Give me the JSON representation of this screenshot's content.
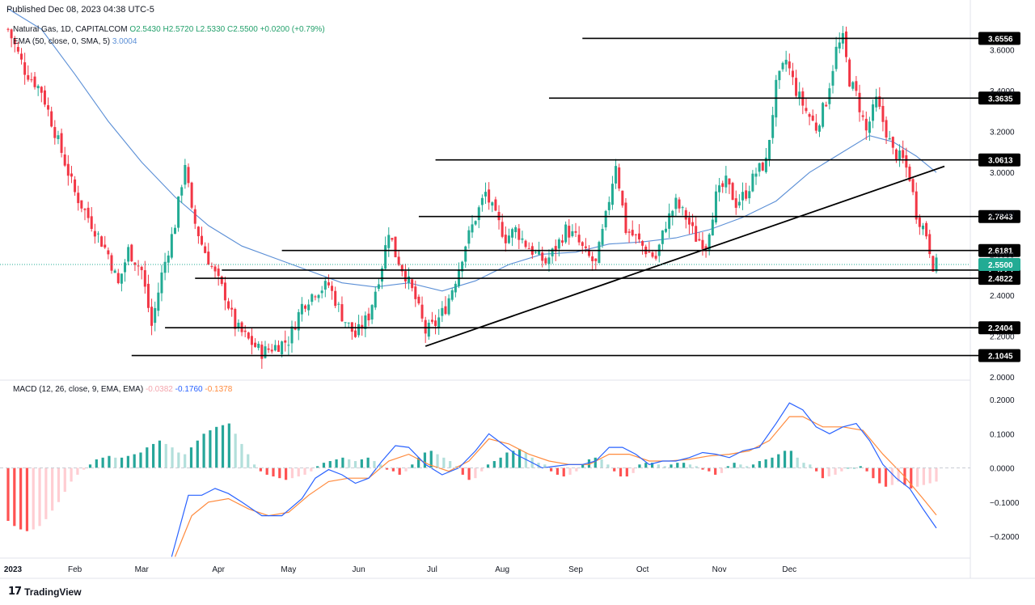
{
  "published": "Published  Dec 08, 2023 04:38 UTC-5",
  "header": {
    "symbol": "Natural Gas, 1D, CAPITALCOM",
    "o": "O2.5430",
    "h": "H2.5720",
    "l": "L2.5330",
    "c": "C2.5500",
    "change": "+0.0200 (+0.79%)",
    "ema_label": "EMA (50, close, 0, SMA, 5)",
    "ema_value": "3.0004"
  },
  "macd_header": {
    "label": "MACD (12, 26, close, 9, EMA, EMA)",
    "hist": "-0.0382",
    "macd": "-0.1760",
    "signal": "-0.1378"
  },
  "brand": "TradingView",
  "colors": {
    "up": "#22ab94",
    "down": "#f23645",
    "ema": "#5b8fd6",
    "macd": "#2962ff",
    "signal": "#ff8a3d",
    "hist_pos_strong": "#26a69a",
    "hist_pos_weak": "#b2dfdb",
    "hist_neg_strong": "#ff5252",
    "hist_neg_weak": "#ffcdd2"
  },
  "chart_data": [
    {
      "type": "candlestick",
      "ylim": [
        2.0,
        3.7
      ],
      "y_ticks": [
        "3.6000",
        "3.4000",
        "3.2000",
        "3.0000",
        "2.8000",
        "2.6000",
        "2.4000",
        "2.2000",
        "2.0000"
      ],
      "x_ticks": [
        "2023",
        "Feb",
        "Mar",
        "Apr",
        "May",
        "Jun",
        "Jul",
        "Aug",
        "Sep",
        "Oct",
        "Nov",
        "Dec"
      ],
      "last_price": 2.55,
      "last_price_label": "2.5500",
      "close_path": [
        [
          0,
          3.7
        ],
        [
          5,
          3.5
        ],
        [
          10,
          3.4
        ],
        [
          15,
          3.15
        ],
        [
          20,
          2.9
        ],
        [
          25,
          2.75
        ],
        [
          30,
          2.6
        ],
        [
          33,
          2.45
        ],
        [
          36,
          2.62
        ],
        [
          40,
          2.52
        ],
        [
          43,
          2.25
        ],
        [
          46,
          2.5
        ],
        [
          50,
          2.75
        ],
        [
          53,
          3.05
        ],
        [
          55,
          2.8
        ],
        [
          58,
          2.65
        ],
        [
          62,
          2.5
        ],
        [
          65,
          2.4
        ],
        [
          68,
          2.25
        ],
        [
          72,
          2.18
        ],
        [
          76,
          2.12
        ],
        [
          80,
          2.15
        ],
        [
          84,
          2.18
        ],
        [
          88,
          2.35
        ],
        [
          92,
          2.42
        ],
        [
          96,
          2.45
        ],
        [
          100,
          2.3
        ],
        [
          104,
          2.2
        ],
        [
          108,
          2.3
        ],
        [
          112,
          2.55
        ],
        [
          114,
          2.72
        ],
        [
          116,
          2.6
        ],
        [
          119,
          2.5
        ],
        [
          122,
          2.38
        ],
        [
          125,
          2.22
        ],
        [
          128,
          2.26
        ],
        [
          131,
          2.34
        ],
        [
          134,
          2.48
        ],
        [
          137,
          2.65
        ],
        [
          140,
          2.78
        ],
        [
          143,
          2.9
        ],
        [
          146,
          2.78
        ],
        [
          149,
          2.68
        ],
        [
          152,
          2.72
        ],
        [
          155,
          2.65
        ],
        [
          158,
          2.6
        ],
        [
          161,
          2.56
        ],
        [
          164,
          2.63
        ],
        [
          167,
          2.72
        ],
        [
          170,
          2.68
        ],
        [
          173,
          2.6
        ],
        [
          176,
          2.55
        ],
        [
          179,
          2.78
        ],
        [
          182,
          3.05
        ],
        [
          185,
          2.72
        ],
        [
          188,
          2.68
        ],
        [
          191,
          2.62
        ],
        [
          194,
          2.58
        ],
        [
          197,
          2.75
        ],
        [
          200,
          2.85
        ],
        [
          203,
          2.78
        ],
        [
          206,
          2.68
        ],
        [
          209,
          2.65
        ],
        [
          212,
          2.88
        ],
        [
          215,
          2.95
        ],
        [
          218,
          2.85
        ],
        [
          221,
          2.9
        ],
        [
          224,
          3.0
        ],
        [
          227,
          3.05
        ],
        [
          230,
          3.42
        ],
        [
          233,
          3.55
        ],
        [
          236,
          3.4
        ],
        [
          239,
          3.3
        ],
        [
          242,
          3.22
        ],
        [
          245,
          3.35
        ],
        [
          248,
          3.6
        ],
        [
          250,
          3.65
        ],
        [
          252,
          3.45
        ],
        [
          254,
          3.38
        ],
        [
          257,
          3.2
        ],
        [
          260,
          3.35
        ],
        [
          262,
          3.25
        ],
        [
          265,
          3.1
        ],
        [
          268,
          3.06
        ],
        [
          270,
          2.98
        ],
        [
          272,
          2.8
        ],
        [
          275,
          2.7
        ],
        [
          277,
          2.55
        ],
        [
          278,
          2.55
        ]
      ],
      "ema_path": [
        [
          0,
          3.8
        ],
        [
          10,
          3.7
        ],
        [
          20,
          3.48
        ],
        [
          30,
          3.25
        ],
        [
          40,
          3.05
        ],
        [
          50,
          2.88
        ],
        [
          60,
          2.74
        ],
        [
          70,
          2.64
        ],
        [
          80,
          2.58
        ],
        [
          90,
          2.52
        ],
        [
          100,
          2.46
        ],
        [
          110,
          2.44
        ],
        [
          120,
          2.46
        ],
        [
          130,
          2.42
        ],
        [
          140,
          2.47
        ],
        [
          150,
          2.55
        ],
        [
          160,
          2.6
        ],
        [
          170,
          2.61
        ],
        [
          180,
          2.65
        ],
        [
          190,
          2.66
        ],
        [
          200,
          2.68
        ],
        [
          210,
          2.72
        ],
        [
          220,
          2.78
        ],
        [
          230,
          2.86
        ],
        [
          240,
          3.0
        ],
        [
          250,
          3.1
        ],
        [
          258,
          3.18
        ],
        [
          265,
          3.15
        ],
        [
          272,
          3.08
        ],
        [
          278,
          3.0
        ]
      ],
      "horizontal_levels": [
        3.6556,
        3.3635,
        3.0613,
        2.7843,
        2.6181,
        2.5225,
        2.4822,
        2.2404,
        2.1045
      ],
      "level_labels": [
        "3.6556",
        "3.3635",
        "3.0613",
        "2.7843",
        "2.6181",
        "2.5225",
        "2.4822",
        "2.2404",
        "2.1045"
      ],
      "trendline": {
        "from": [
          125,
          2.15
        ],
        "to": [
          278,
          3.03
        ]
      }
    },
    {
      "type": "macd",
      "ylim": [
        -0.26,
        0.22
      ],
      "y_ticks": [
        "0.2000",
        "0.1000",
        "0.0000",
        "−0.1000",
        "−0.2000"
      ],
      "macd_path": [
        [
          49,
          -0.26
        ],
        [
          54,
          -0.08
        ],
        [
          58,
          -0.08
        ],
        [
          62,
          -0.06
        ],
        [
          66,
          -0.075
        ],
        [
          70,
          -0.1
        ],
        [
          76,
          -0.14
        ],
        [
          82,
          -0.14
        ],
        [
          88,
          -0.09
        ],
        [
          92,
          -0.03
        ],
        [
          96,
          -0.005
        ],
        [
          100,
          -0.02
        ],
        [
          104,
          -0.045
        ],
        [
          108,
          -0.03
        ],
        [
          112,
          0.02
        ],
        [
          116,
          0.065
        ],
        [
          120,
          0.06
        ],
        [
          125,
          0.01
        ],
        [
          130,
          -0.02
        ],
        [
          135,
          0.0
        ],
        [
          140,
          0.05
        ],
        [
          144,
          0.1
        ],
        [
          148,
          0.07
        ],
        [
          152,
          0.04
        ],
        [
          156,
          0.02
        ],
        [
          160,
          0.0
        ],
        [
          164,
          0.005
        ],
        [
          168,
          0.01
        ],
        [
          172,
          0.01
        ],
        [
          176,
          0.02
        ],
        [
          180,
          0.06
        ],
        [
          184,
          0.06
        ],
        [
          188,
          0.04
        ],
        [
          192,
          0.01
        ],
        [
          196,
          0.02
        ],
        [
          200,
          0.02
        ],
        [
          204,
          0.03
        ],
        [
          208,
          0.045
        ],
        [
          212,
          0.04
        ],
        [
          216,
          0.03
        ],
        [
          220,
          0.05
        ],
        [
          225,
          0.06
        ],
        [
          230,
          0.13
        ],
        [
          234,
          0.19
        ],
        [
          238,
          0.17
        ],
        [
          242,
          0.12
        ],
        [
          246,
          0.1
        ],
        [
          250,
          0.12
        ],
        [
          254,
          0.13
        ],
        [
          258,
          0.08
        ],
        [
          262,
          0.01
        ],
        [
          266,
          -0.03
        ],
        [
          270,
          -0.06
        ],
        [
          274,
          -0.12
        ],
        [
          278,
          -0.176
        ]
      ],
      "signal_path": [
        [
          50,
          -0.26
        ],
        [
          55,
          -0.14
        ],
        [
          60,
          -0.1
        ],
        [
          66,
          -0.09
        ],
        [
          72,
          -0.12
        ],
        [
          78,
          -0.14
        ],
        [
          84,
          -0.13
        ],
        [
          90,
          -0.08
        ],
        [
          96,
          -0.04
        ],
        [
          102,
          -0.03
        ],
        [
          108,
          -0.03
        ],
        [
          114,
          0.02
        ],
        [
          120,
          0.04
        ],
        [
          126,
          0.01
        ],
        [
          132,
          -0.01
        ],
        [
          138,
          0.02
        ],
        [
          144,
          0.085
        ],
        [
          150,
          0.07
        ],
        [
          156,
          0.04
        ],
        [
          162,
          0.02
        ],
        [
          168,
          0.01
        ],
        [
          174,
          0.01
        ],
        [
          180,
          0.04
        ],
        [
          186,
          0.04
        ],
        [
          192,
          0.02
        ],
        [
          198,
          0.02
        ],
        [
          204,
          0.025
        ],
        [
          210,
          0.035
        ],
        [
          216,
          0.04
        ],
        [
          222,
          0.05
        ],
        [
          228,
          0.08
        ],
        [
          234,
          0.15
        ],
        [
          238,
          0.15
        ],
        [
          244,
          0.12
        ],
        [
          250,
          0.12
        ],
        [
          256,
          0.11
        ],
        [
          262,
          0.04
        ],
        [
          268,
          -0.02
        ],
        [
          274,
          -0.09
        ],
        [
          278,
          -0.138
        ]
      ],
      "histogram": [
        -0.155,
        -0.17,
        -0.18,
        -0.185,
        -0.18,
        -0.17,
        -0.15,
        -0.125,
        -0.1,
        -0.07,
        -0.04,
        -0.02,
        -0.005,
        0.01,
        0.025,
        0.03,
        0.035,
        0.03,
        0.03,
        0.035,
        0.04,
        0.045,
        0.06,
        0.07,
        0.08,
        0.07,
        0.06,
        0.045,
        0.04,
        0.06,
        0.08,
        0.1,
        0.11,
        0.12,
        0.125,
        0.13,
        0.1,
        0.07,
        0.04,
        0.01,
        -0.01,
        -0.02,
        -0.025,
        -0.03,
        -0.035,
        -0.03,
        -0.025,
        -0.02,
        -0.01,
        0.005,
        0.015,
        0.02,
        0.025,
        0.03,
        0.025,
        0.02,
        0.025,
        0.03,
        0.02,
        0.01,
        -0.005,
        -0.01,
        -0.02,
        -0.01,
        0.01,
        0.03,
        0.045,
        0.05,
        0.04,
        0.03,
        0.02,
        0.005,
        -0.02,
        -0.035,
        -0.03,
        -0.01,
        0.01,
        0.02,
        0.03,
        0.045,
        0.05,
        0.055,
        0.045,
        0.03,
        0.015,
        0.01,
        -0.01,
        -0.02,
        -0.025,
        -0.02,
        -0.01,
        0.01,
        0.025,
        0.03,
        0.025,
        0.01,
        -0.01,
        -0.025,
        -0.025,
        -0.015,
        0.01,
        0.015,
        0.015,
        0.01,
        0.005,
        0.01,
        0.015,
        0.015,
        0.01,
        0.005,
        -0.005,
        -0.01,
        -0.02,
        -0.015,
        0.005,
        0.015,
        0.01,
        0.005,
        0.01,
        0.02,
        0.025,
        0.03,
        0.04,
        0.05,
        0.05,
        0.03,
        0.015,
        0.01,
        -0.01,
        -0.03,
        -0.025,
        -0.02,
        -0.01,
        0.0,
        0.0,
        0.005,
        -0.01,
        -0.03,
        -0.045,
        -0.055,
        -0.05,
        -0.04,
        -0.05,
        -0.06,
        -0.055,
        -0.05,
        -0.045,
        -0.04
      ]
    }
  ]
}
